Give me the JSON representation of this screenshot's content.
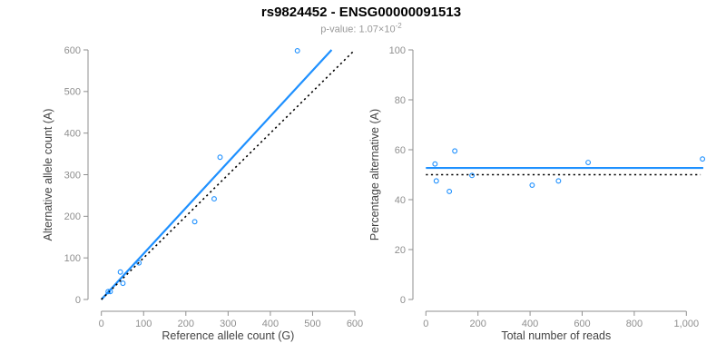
{
  "header": {
    "title": "rs9824452 - ENSG00000091513",
    "pvalue_label": "p-value: 1.07×10",
    "pvalue_exponent": "-2"
  },
  "colors": {
    "blue": "#1E90FF",
    "black": "#000000",
    "axis": "#8f8f8f",
    "tick_text": "#8f8f8f",
    "axis_title": "#444444",
    "background": "#ffffff"
  },
  "chart_data": [
    {
      "id": "allele-count-scatter",
      "type": "scatter",
      "xlabel": "Reference allele count (G)",
      "ylabel": "Alternative allele count (A)",
      "xlim": [
        0,
        600
      ],
      "ylim": [
        0,
        600
      ],
      "xticks": [
        0,
        100,
        200,
        300,
        400,
        500,
        600
      ],
      "xtick_labels": [
        "0",
        "100",
        "200",
        "300",
        "400",
        "500",
        "600"
      ],
      "yticks": [
        0,
        100,
        200,
        300,
        400,
        500,
        600
      ],
      "ytick_labels": [
        "0",
        "100",
        "200",
        "300",
        "400",
        "500",
        "600"
      ],
      "grid": false,
      "legend": false,
      "points": [
        [
          16,
          19
        ],
        [
          21,
          19
        ],
        [
          51,
          39
        ],
        [
          45,
          66
        ],
        [
          89,
          88
        ],
        [
          221,
          187
        ],
        [
          267,
          242
        ],
        [
          281,
          342
        ],
        [
          464,
          598
        ]
      ],
      "lines": [
        {
          "name": "fitted-allelic-ratio-line",
          "style": "solid",
          "color_key": "blue",
          "x": [
            0,
            545
          ],
          "y": [
            0,
            600
          ]
        },
        {
          "name": "identity-line",
          "style": "dashed",
          "color_key": "black",
          "x": [
            0,
            600
          ],
          "y": [
            0,
            600
          ]
        }
      ]
    },
    {
      "id": "percentage-vs-reads-scatter",
      "type": "scatter",
      "xlabel": "Total number of reads",
      "ylabel": "Percentage alternative (A)",
      "xlim": [
        0,
        1080
      ],
      "ylim": [
        0,
        100
      ],
      "xticks": [
        0,
        200,
        400,
        600,
        800,
        1000
      ],
      "xtick_labels": [
        "0",
        "200",
        "400",
        "600",
        "800",
        "1,000"
      ],
      "yticks": [
        0,
        20,
        40,
        60,
        80,
        100
      ],
      "ytick_labels": [
        "0",
        "20",
        "40",
        "60",
        "80",
        "100"
      ],
      "grid": false,
      "legend": false,
      "points": [
        [
          35,
          54.3
        ],
        [
          40,
          47.5
        ],
        [
          90,
          43.3
        ],
        [
          111,
          59.5
        ],
        [
          177,
          49.7
        ],
        [
          408,
          45.8
        ],
        [
          509,
          47.5
        ],
        [
          623,
          54.9
        ],
        [
          1062,
          56.3
        ]
      ],
      "lines": [
        {
          "name": "mean-percentage-line",
          "style": "solid",
          "color_key": "blue",
          "x": [
            0,
            1065
          ],
          "y": [
            52.7,
            52.7
          ]
        },
        {
          "name": "expected-50-percent-line",
          "style": "dashed",
          "color_key": "black",
          "x": [
            0,
            1055
          ],
          "y": [
            50,
            50
          ]
        }
      ]
    }
  ]
}
